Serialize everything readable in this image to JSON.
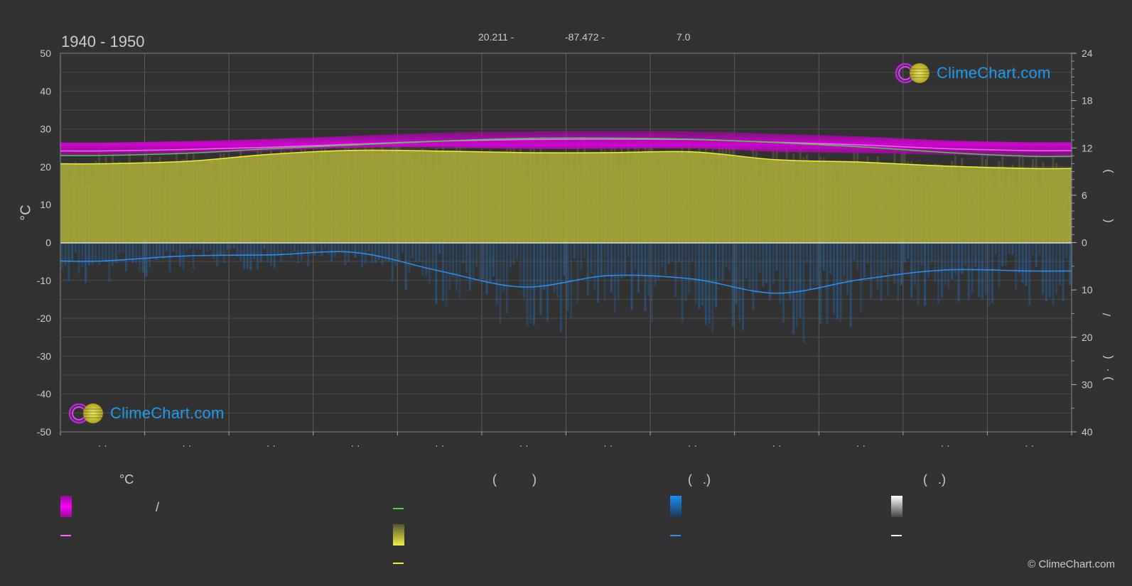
{
  "header": {
    "title": "1940 - 1950",
    "lat": "20.211 -",
    "lon": "-87.472 -",
    "elev": "7.0"
  },
  "left_axis_unit": "°C",
  "right_axis_labels": [
    ")",
    "(",
    "/",
    "(",
    "·",
    ")"
  ],
  "logo_text": "ClimeChart.com",
  "copyright": "© ClimeChart.com",
  "month_tick_text": "· ·",
  "legend": {
    "col1_head": "°C",
    "col1_slash": "/",
    "col2_head": "(          )",
    "col3_head": "(   .)",
    "col4_head": "(   .)"
  },
  "colors": {
    "background": "#323232",
    "temp_band": "#e000e0",
    "sunshine": "#c8c832",
    "rain": "#1e7ad6",
    "max_line": "#ff60ff",
    "mean_line": "#3ed83e",
    "sun_line": "#f0f030",
    "rain_line": "#2a90ff",
    "logo": "#1e9bf0"
  },
  "chart_data": {
    "type": "area",
    "months": 12,
    "x": [
      1,
      2,
      3,
      4,
      5,
      6,
      7,
      8,
      9,
      10,
      11,
      12
    ],
    "left_axis": {
      "label": "°C",
      "ylim": [
        -50,
        50
      ],
      "ticks": [
        50,
        40,
        30,
        20,
        10,
        0,
        -10,
        -20,
        -30,
        -40,
        -50
      ]
    },
    "right_axis_top": {
      "ylim": [
        0,
        24
      ],
      "ticks": [
        24,
        18,
        12,
        6,
        0
      ]
    },
    "right_axis_bottom": {
      "ylim": [
        0,
        40
      ],
      "ticks": [
        0,
        10,
        20,
        30,
        40
      ]
    },
    "series": [
      {
        "values": [
          24.2,
          24.6,
          25.2,
          26.0,
          26.8,
          27.2,
          27.3,
          27.2,
          26.5,
          25.8,
          24.8,
          24.3
        ]
      },
      {
        "values": [
          23.0,
          23.6,
          24.8,
          25.8,
          26.8,
          27.5,
          27.6,
          27.3,
          26.4,
          25.3,
          23.8,
          22.8
        ]
      },
      {
        "values": [
          21.2,
          21.6,
          22.5,
          23.3,
          23.4,
          23.0,
          23.0,
          23.1,
          22.2,
          21.8,
          21.4,
          20.6
        ]
      },
      {
        "values": [
          10.0,
          10.3,
          11.2,
          11.7,
          11.6,
          11.4,
          11.4,
          11.5,
          10.5,
          10.2,
          9.7,
          9.4
        ]
      },
      {
        "values": [
          3.9,
          2.8,
          2.6,
          2.1,
          6.0,
          9.4,
          7.0,
          7.7,
          10.7,
          7.8,
          5.8,
          6.0
        ]
      }
    ],
    "grid": true
  }
}
